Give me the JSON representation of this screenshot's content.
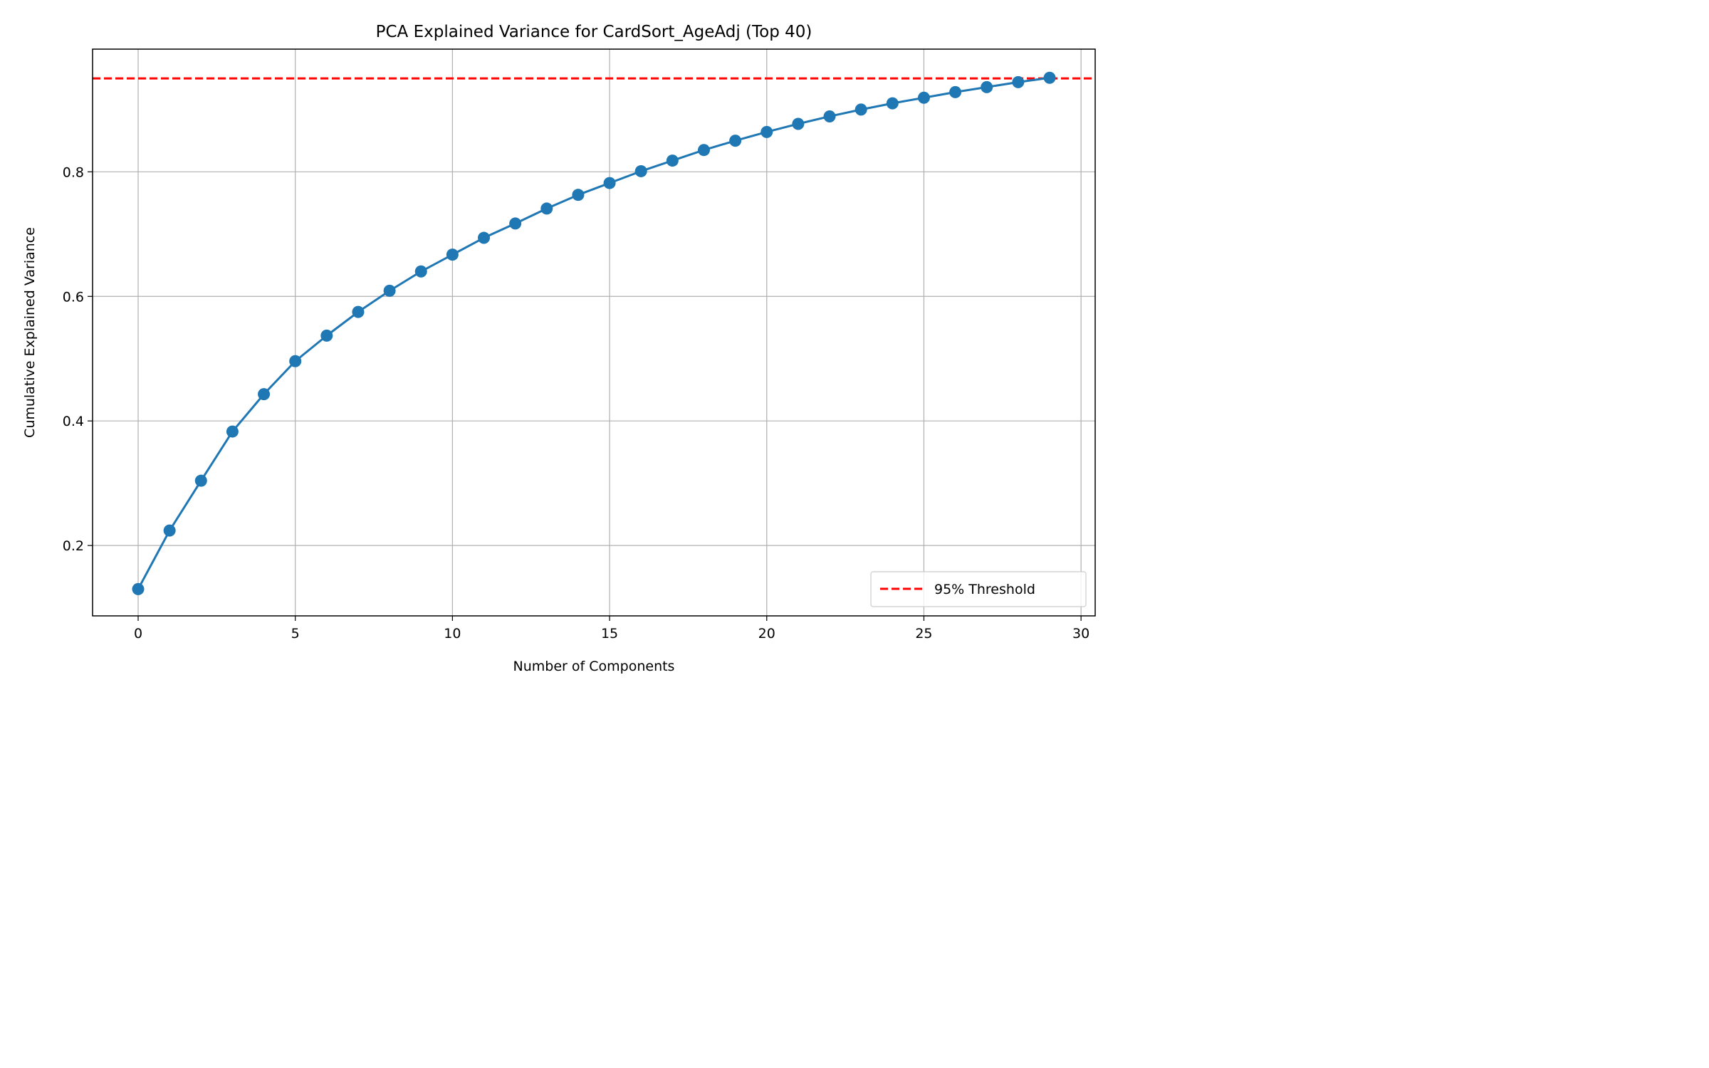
{
  "chart_data": {
    "type": "line",
    "title": "PCA Explained Variance for CardSort_AgeAdj (Top 40)",
    "xlabel": "Number of Components",
    "ylabel": "Cumulative Explained Variance",
    "xlim": [
      -1.45,
      30.45
    ],
    "ylim": [
      0.087,
      0.997
    ],
    "xticks": [
      0,
      5,
      10,
      15,
      20,
      25,
      30
    ],
    "yticks": [
      0.2,
      0.4,
      0.6,
      0.8
    ],
    "xtick_labels": [
      "0",
      "5",
      "10",
      "15",
      "20",
      "25",
      "30"
    ],
    "ytick_labels": [
      "0.2",
      "0.4",
      "0.6",
      "0.8"
    ],
    "grid": true,
    "legend_position": "bottom-right",
    "series": [
      {
        "color": "#1f77b4",
        "marker": "circle",
        "x": [
          0,
          1,
          2,
          3,
          4,
          5,
          6,
          7,
          8,
          9,
          10,
          11,
          12,
          13,
          14,
          15,
          16,
          17,
          18,
          19,
          20,
          21,
          22,
          23,
          24,
          25,
          26,
          27,
          28,
          29
        ],
        "values": [
          0.13,
          0.224,
          0.304,
          0.383,
          0.443,
          0.496,
          0.537,
          0.575,
          0.609,
          0.64,
          0.667,
          0.694,
          0.717,
          0.741,
          0.763,
          0.782,
          0.801,
          0.818,
          0.835,
          0.85,
          0.864,
          0.877,
          0.889,
          0.9,
          0.91,
          0.919,
          0.928,
          0.936,
          0.944,
          0.951
        ]
      }
    ],
    "reference_lines": [
      {
        "name": "95% Threshold",
        "y": 0.95,
        "color": "#ff0000",
        "style": "dashed"
      }
    ]
  }
}
